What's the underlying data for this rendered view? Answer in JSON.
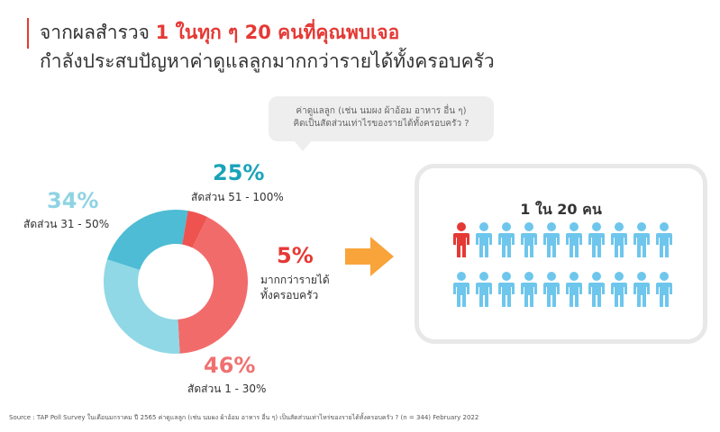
{
  "title": {
    "line1_prefix": "จากผลสำรวจ ",
    "line1_highlight": "1 ในทุก ๆ 20 คนที่คุณพบเจอ",
    "line2": "กำลังประสบปัญหาค่าดูแลลูกมากกว่ารายได้ทั้งครอบครัว"
  },
  "bubble": {
    "line1": "ค่าดูแลลูก (เช่น นมผง ผ้าอ้อม อาหาร อื่น ๆ)",
    "line2": "คิดเป็นสัดส่วนเท่าไรของรายได้ทั้งครอบครัว ?"
  },
  "labels": {
    "pct_25": "25%",
    "txt_25": "สัดส่วน 51 - 100%",
    "pct_34": "34%",
    "txt_34": "สัดส่วน 31 - 50%",
    "pct_5": "5%",
    "txt_5_line1": "มากกว่ารายได้",
    "txt_5_line2": "ทั้งครอบครัว",
    "pct_46": "46%",
    "txt_46": "สัดส่วน 1 - 30%"
  },
  "panel": {
    "title": "1 ใน 20 คน",
    "total_people": 20,
    "highlighted_people": 1,
    "highlight_color": "#e53935",
    "default_color": "#6ec6ec"
  },
  "source": "Source : TAP Poll Survey ในเดือนมกราคม ปี 2565 ค่าดูแลลูก (เช่น นมผง ผ้าอ้อม อาหาร อื่น ๆ) เป็นสัดส่วนเท่าไหร่ของรายได้ทั้งครอบครัว ? (n = 344) February 2022",
  "colors": {
    "red": "#e53935",
    "teal": "#1aa3b8",
    "light_blue": "#8fd3e3",
    "salmon": "#f07070",
    "arrow": "#f9a33b"
  },
  "chart_data": {
    "type": "pie",
    "title": "",
    "series": [
      {
        "name": "สัดส่วน 51 - 100%",
        "value": 25,
        "color": "#4dbcd4"
      },
      {
        "name": "มากกว่ารายได้ทั้งครอบครัว",
        "value": 5,
        "color": "#ef5350"
      },
      {
        "name": "สัดส่วน 1 - 30%",
        "value": 46,
        "color": "#f26b6b"
      },
      {
        "name": "สัดส่วน 31 - 50%",
        "value": 34,
        "color": "#90d8e6"
      }
    ]
  }
}
